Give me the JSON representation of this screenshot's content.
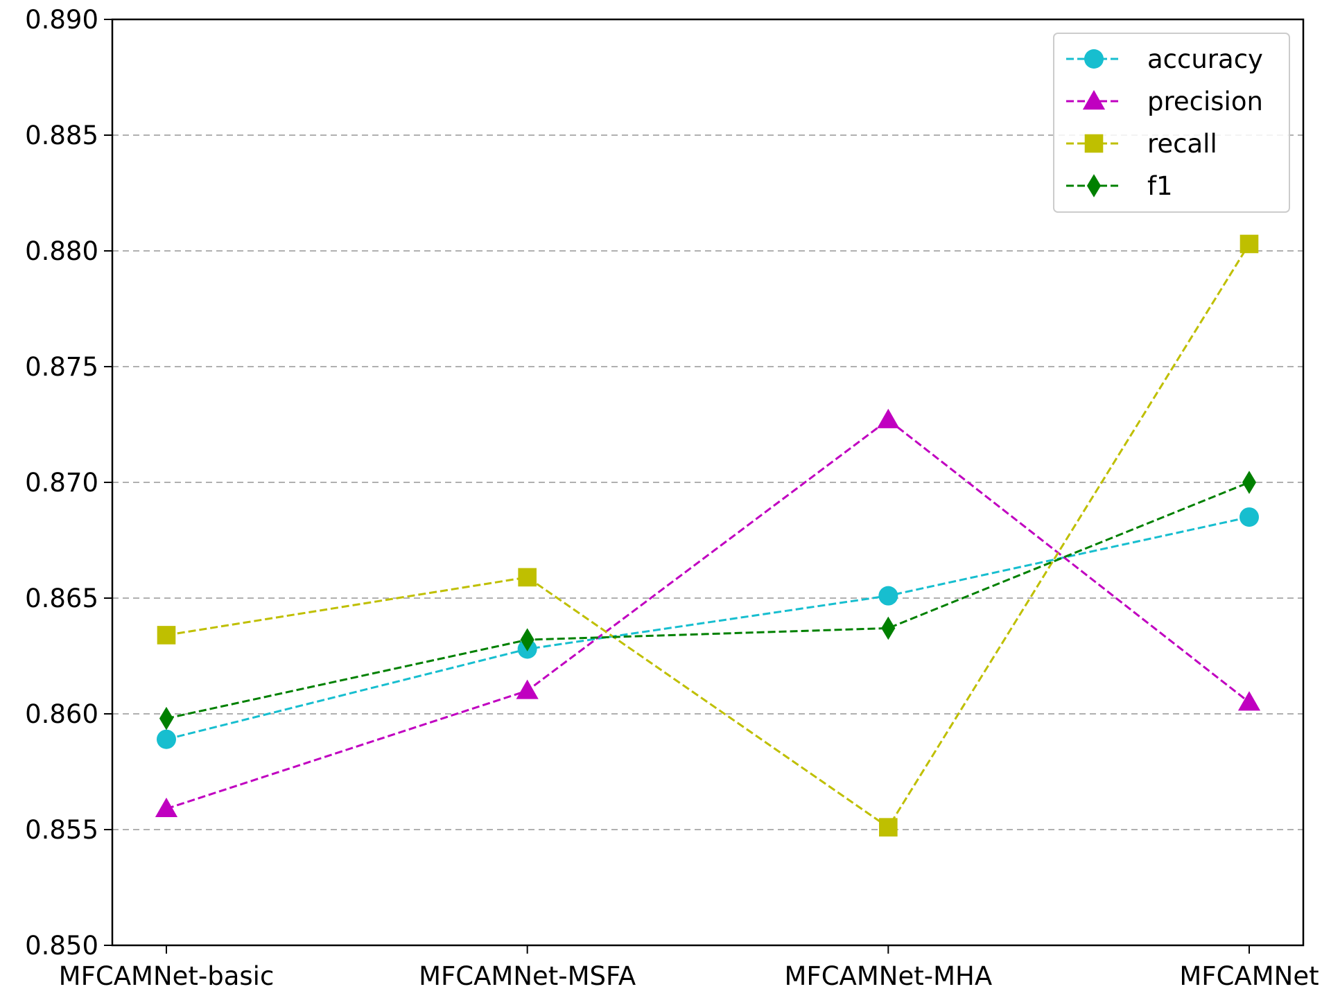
{
  "chart_data": {
    "type": "line",
    "categories": [
      "MFCAMNet-basic",
      "MFCAMNet-MSFA",
      "MFCAMNet-MHA",
      "MFCAMNet"
    ],
    "series": [
      {
        "name": "accuracy",
        "values": [
          0.8589,
          0.8628,
          0.8651,
          0.8685
        ],
        "color": "#17becf",
        "marker": "circle",
        "line_style": "dashed"
      },
      {
        "name": "precision",
        "values": [
          0.8559,
          0.861,
          0.8727,
          0.8605
        ],
        "color": "#c000c0",
        "marker": "triangle",
        "line_style": "dashed"
      },
      {
        "name": "recall",
        "values": [
          0.8634,
          0.8659,
          0.8551,
          0.8803
        ],
        "color": "#bfbf00",
        "marker": "square",
        "line_style": "dashed"
      },
      {
        "name": "f1",
        "values": [
          0.8598,
          0.8632,
          0.8637,
          0.87
        ],
        "color": "#008000",
        "marker": "diamond",
        "line_style": "dashed"
      }
    ],
    "ylim": [
      0.85,
      0.89
    ],
    "yticks": [
      "0.850",
      "0.855",
      "0.860",
      "0.865",
      "0.870",
      "0.875",
      "0.880",
      "0.885",
      "0.890"
    ],
    "title": "",
    "xlabel": "",
    "ylabel": "",
    "grid": "horizontal dashed",
    "legend_position": "top-right"
  }
}
